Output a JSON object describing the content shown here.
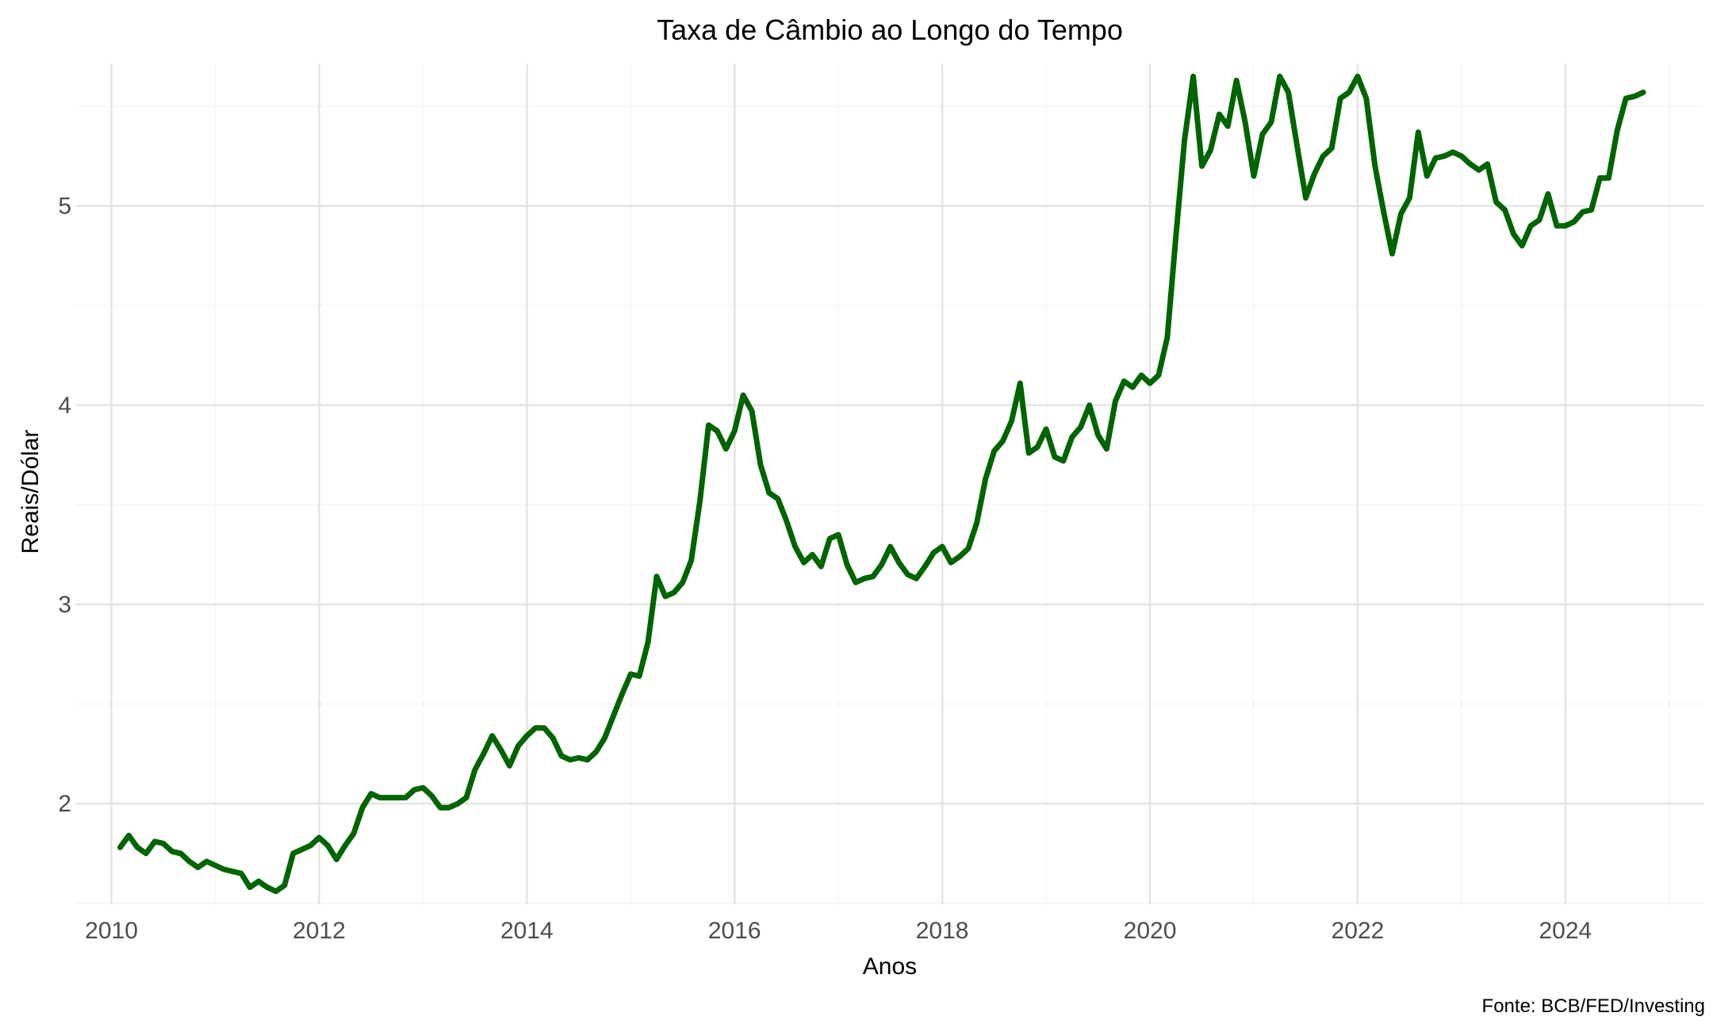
{
  "chart_data": {
    "type": "line",
    "title": "Taxa de Câmbio ao Longo do Tempo",
    "xlabel": "Anos",
    "ylabel": "Reais/Dólar",
    "caption": "Fonte: BCB/FED/Investing",
    "xlim": [
      2009.66,
      2025.33
    ],
    "ylim": [
      1.495,
      5.715
    ],
    "x_ticks": [
      2010,
      2012,
      2014,
      2016,
      2018,
      2020,
      2022,
      2024
    ],
    "x_tick_labels": [
      "2010",
      "2012",
      "2014",
      "2016",
      "2018",
      "2020",
      "2022",
      "2024"
    ],
    "x_minor_ticks": [
      2011,
      2013,
      2015,
      2017,
      2019,
      2021,
      2023,
      2025
    ],
    "y_ticks": [
      2,
      3,
      4,
      5
    ],
    "y_tick_labels": [
      "2",
      "3",
      "4",
      "5"
    ],
    "y_minor_ticks": [
      1.5,
      2.5,
      3.5,
      4.5,
      5.5
    ],
    "grid": true,
    "legend": "none",
    "line_color": "#006400",
    "series": [
      {
        "x": [
          2010.083,
          2010.167,
          2010.25,
          2010.333,
          2010.417,
          2010.5,
          2010.583,
          2010.667,
          2010.75,
          2010.833,
          2010.917,
          2011.0,
          2011.083,
          2011.167,
          2011.25,
          2011.333,
          2011.417,
          2011.5,
          2011.583,
          2011.667,
          2011.75,
          2011.833,
          2011.917,
          2012.0,
          2012.083,
          2012.167,
          2012.25,
          2012.333,
          2012.417,
          2012.5,
          2012.583,
          2012.667,
          2012.75,
          2012.833,
          2012.917,
          2013.0,
          2013.083,
          2013.167,
          2013.25,
          2013.333,
          2013.417,
          2013.5,
          2013.583,
          2013.667,
          2013.75,
          2013.833,
          2013.917,
          2014.0,
          2014.083,
          2014.167,
          2014.25,
          2014.333,
          2014.417,
          2014.5,
          2014.583,
          2014.667,
          2014.75,
          2014.833,
          2014.917,
          2015.0,
          2015.083,
          2015.167,
          2015.25,
          2015.333,
          2015.417,
          2015.5,
          2015.583,
          2015.667,
          2015.75,
          2015.833,
          2015.917,
          2016.0,
          2016.083,
          2016.167,
          2016.25,
          2016.333,
          2016.417,
          2016.5,
          2016.583,
          2016.667,
          2016.75,
          2016.833,
          2016.917,
          2017.0,
          2017.083,
          2017.167,
          2017.25,
          2017.333,
          2017.417,
          2017.5,
          2017.583,
          2017.667,
          2017.75,
          2017.833,
          2017.917,
          2018.0,
          2018.083,
          2018.167,
          2018.25,
          2018.333,
          2018.417,
          2018.5,
          2018.583,
          2018.667,
          2018.75,
          2018.833,
          2018.917,
          2019.0,
          2019.083,
          2019.167,
          2019.25,
          2019.333,
          2019.417,
          2019.5,
          2019.583,
          2019.667,
          2019.75,
          2019.833,
          2019.917,
          2020.0,
          2020.083,
          2020.167,
          2020.25,
          2020.333,
          2020.417,
          2020.5,
          2020.583,
          2020.667,
          2020.75,
          2020.833,
          2020.917,
          2021.0,
          2021.083,
          2021.167,
          2021.25,
          2021.333,
          2021.417,
          2021.5,
          2021.583,
          2021.667,
          2021.75,
          2021.833,
          2021.917,
          2022.0,
          2022.083,
          2022.167,
          2022.25,
          2022.333,
          2022.417,
          2022.5,
          2022.583,
          2022.667,
          2022.75,
          2022.833,
          2022.917,
          2023.0,
          2023.083,
          2023.167,
          2023.25,
          2023.333,
          2023.417,
          2023.5,
          2023.583,
          2023.667,
          2023.75,
          2023.833,
          2023.917,
          2024.0,
          2024.083,
          2024.167,
          2024.25,
          2024.333,
          2024.417,
          2024.5,
          2024.583,
          2024.667,
          2024.75
        ],
        "y": [
          1.78,
          1.84,
          1.78,
          1.75,
          1.81,
          1.8,
          1.76,
          1.75,
          1.71,
          1.68,
          1.71,
          1.69,
          1.67,
          1.66,
          1.65,
          1.58,
          1.61,
          1.58,
          1.56,
          1.59,
          1.75,
          1.77,
          1.79,
          1.83,
          1.79,
          1.72,
          1.79,
          1.85,
          1.98,
          2.05,
          2.03,
          2.03,
          2.03,
          2.03,
          2.07,
          2.08,
          2.04,
          1.98,
          1.98,
          2.0,
          2.03,
          2.17,
          2.25,
          2.34,
          2.27,
          2.19,
          2.29,
          2.34,
          2.38,
          2.38,
          2.33,
          2.24,
          2.22,
          2.23,
          2.22,
          2.26,
          2.33,
          2.44,
          2.55,
          2.65,
          2.64,
          2.81,
          3.14,
          3.04,
          3.06,
          3.11,
          3.22,
          3.52,
          3.9,
          3.87,
          3.78,
          3.87,
          4.05,
          3.97,
          3.7,
          3.56,
          3.53,
          3.42,
          3.29,
          3.21,
          3.25,
          3.19,
          3.33,
          3.35,
          3.2,
          3.11,
          3.13,
          3.14,
          3.2,
          3.29,
          3.21,
          3.15,
          3.13,
          3.19,
          3.26,
          3.29,
          3.21,
          3.24,
          3.28,
          3.41,
          3.63,
          3.77,
          3.82,
          3.92,
          4.11,
          3.76,
          3.79,
          3.88,
          3.74,
          3.72,
          3.84,
          3.89,
          4.0,
          3.85,
          3.78,
          4.02,
          4.12,
          4.09,
          4.15,
          4.11,
          4.15,
          4.34,
          4.85,
          5.33,
          5.65,
          5.2,
          5.28,
          5.46,
          5.4,
          5.63,
          5.42,
          5.15,
          5.36,
          5.42,
          5.65,
          5.57,
          5.3,
          5.04,
          5.16,
          5.25,
          5.29,
          5.54,
          5.57,
          5.65,
          5.54,
          5.2,
          4.97,
          4.76,
          4.96,
          5.04,
          5.37,
          5.15,
          5.24,
          5.25,
          5.27,
          5.25,
          5.21,
          5.18,
          5.21,
          5.02,
          4.98,
          4.86,
          4.8,
          4.9,
          4.93,
          5.06,
          4.9,
          4.9,
          4.92,
          4.97,
          4.98,
          5.14,
          5.14,
          5.38,
          5.54,
          5.55,
          5.57
        ]
      }
    ]
  }
}
